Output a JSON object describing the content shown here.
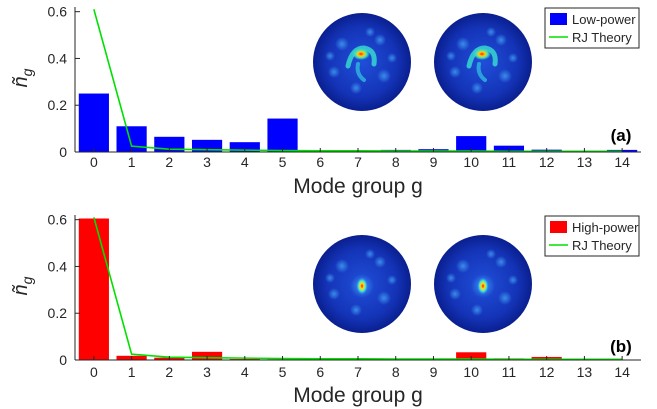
{
  "chart_data": [
    {
      "type": "bar",
      "panel_label": "(a)",
      "xlabel": "Mode group g",
      "ylabel": "ñ",
      "ylabel_sub": "g",
      "categories": [
        "0",
        "1",
        "2",
        "3",
        "4",
        "5",
        "6",
        "7",
        "8",
        "9",
        "10",
        "11",
        "12",
        "13",
        "14"
      ],
      "ylim": [
        0,
        0.62
      ],
      "yticks": [
        "0",
        "0.2",
        "0.4",
        "0.6"
      ],
      "ytick_values": [
        0,
        0.2,
        0.4,
        0.6
      ],
      "grid": false,
      "legend_position": "top-right",
      "series": [
        {
          "name": "Low-power",
          "kind": "bar",
          "color": "#0000ff",
          "values": [
            0.25,
            0.11,
            0.065,
            0.052,
            0.042,
            0.143,
            0.002,
            0.002,
            0.009,
            0.012,
            0.068,
            0.027,
            0.01,
            0.004,
            0.009
          ]
        },
        {
          "name": "RJ Theory",
          "kind": "line",
          "color": "#00e000",
          "values": [
            0.61,
            0.025,
            0.012,
            0.01,
            0.008,
            0.006,
            0.005,
            0.005,
            0.004,
            0.004,
            0.004,
            0.003,
            0.003,
            0.003,
            0.003
          ]
        }
      ],
      "insets": [
        {
          "kind": "speckle-mode-profile",
          "name": "mode-profile-1"
        },
        {
          "kind": "speckle-mode-profile",
          "name": "mode-profile-2"
        }
      ]
    },
    {
      "type": "bar",
      "panel_label": "(b)",
      "xlabel": "Mode group g",
      "ylabel": "ñ",
      "ylabel_sub": "g",
      "categories": [
        "0",
        "1",
        "2",
        "3",
        "4",
        "5",
        "6",
        "7",
        "8",
        "9",
        "10",
        "11",
        "12",
        "13",
        "14"
      ],
      "ylim": [
        0,
        0.62
      ],
      "yticks": [
        "0",
        "0.2",
        "0.4",
        "0.6"
      ],
      "ytick_values": [
        0,
        0.2,
        0.4,
        0.6
      ],
      "grid": false,
      "legend_position": "top-right",
      "series": [
        {
          "name": "High-power",
          "kind": "bar",
          "color": "#ff0000",
          "values": [
            0.605,
            0.018,
            0.01,
            0.035,
            0.004,
            0.003,
            0.002,
            0.002,
            0.002,
            0.002,
            0.033,
            0.007,
            0.013,
            0.002,
            0.002
          ]
        },
        {
          "name": "RJ Theory",
          "kind": "line",
          "color": "#00e000",
          "values": [
            0.61,
            0.025,
            0.012,
            0.01,
            0.008,
            0.006,
            0.005,
            0.005,
            0.004,
            0.004,
            0.004,
            0.003,
            0.003,
            0.003,
            0.003
          ]
        }
      ],
      "insets": [
        {
          "kind": "focused-mode-profile",
          "name": "mode-profile-1"
        },
        {
          "kind": "focused-mode-profile",
          "name": "mode-profile-2"
        }
      ]
    }
  ]
}
